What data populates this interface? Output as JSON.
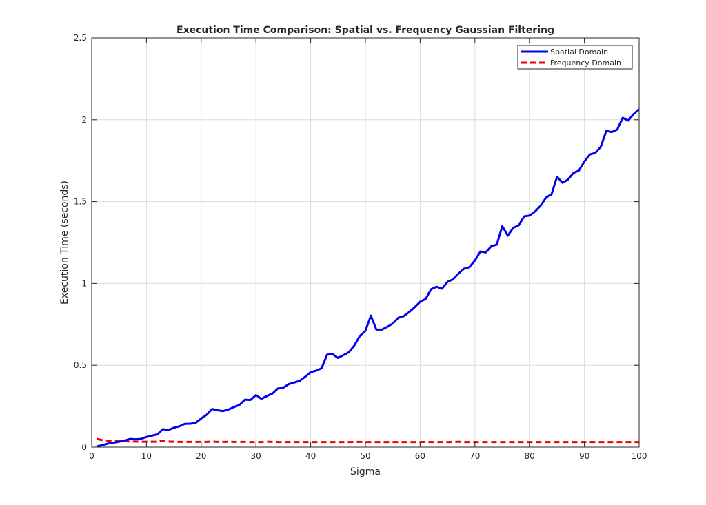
{
  "chart_data": {
    "type": "line",
    "title": "Execution Time Comparison: Spatial vs. Frequency Gaussian Filtering",
    "xlabel": "Sigma",
    "ylabel": "Execution Time (seconds)",
    "xlim": [
      0,
      100
    ],
    "ylim": [
      0,
      2.5
    ],
    "xticks": [
      0,
      10,
      20,
      30,
      40,
      50,
      60,
      70,
      80,
      90,
      100
    ],
    "yticks": [
      0,
      0.5,
      1,
      1.5,
      2,
      2.5
    ],
    "xtick_labels": [
      "0",
      "10",
      "20",
      "30",
      "40",
      "50",
      "60",
      "70",
      "80",
      "90",
      "100"
    ],
    "ytick_labels": [
      "0",
      "0.5",
      "1",
      "1.5",
      "2",
      "2.5"
    ],
    "grid": true,
    "legend_position": "top-right",
    "x": [
      1,
      2,
      3,
      4,
      5,
      6,
      7,
      8,
      9,
      10,
      11,
      12,
      13,
      14,
      15,
      16,
      17,
      18,
      19,
      20,
      21,
      22,
      23,
      24,
      25,
      26,
      27,
      28,
      29,
      30,
      31,
      32,
      33,
      34,
      35,
      36,
      37,
      38,
      39,
      40,
      41,
      42,
      43,
      44,
      45,
      46,
      47,
      48,
      49,
      50,
      51,
      52,
      53,
      54,
      55,
      56,
      57,
      58,
      59,
      60,
      61,
      62,
      63,
      64,
      65,
      66,
      67,
      68,
      69,
      70,
      71,
      72,
      73,
      74,
      75,
      76,
      77,
      78,
      79,
      80,
      81,
      82,
      83,
      84,
      85,
      86,
      87,
      88,
      89,
      90,
      91,
      92,
      93,
      94,
      95,
      96,
      97,
      98,
      99,
      100
    ],
    "series": [
      {
        "name": "Spatial Domain",
        "color": "#0000ee",
        "style": "solid",
        "values": [
          0.005,
          0.012,
          0.022,
          0.027,
          0.033,
          0.04,
          0.05,
          0.048,
          0.05,
          0.062,
          0.07,
          0.078,
          0.11,
          0.105,
          0.118,
          0.127,
          0.142,
          0.143,
          0.148,
          0.175,
          0.198,
          0.233,
          0.225,
          0.22,
          0.23,
          0.245,
          0.258,
          0.29,
          0.288,
          0.318,
          0.295,
          0.312,
          0.327,
          0.358,
          0.363,
          0.385,
          0.395,
          0.405,
          0.43,
          0.458,
          0.467,
          0.482,
          0.565,
          0.568,
          0.545,
          0.562,
          0.58,
          0.622,
          0.68,
          0.71,
          0.803,
          0.718,
          0.718,
          0.735,
          0.755,
          0.79,
          0.8,
          0.825,
          0.855,
          0.888,
          0.905,
          0.965,
          0.98,
          0.968,
          1.01,
          1.025,
          1.06,
          1.09,
          1.1,
          1.14,
          1.195,
          1.19,
          1.228,
          1.237,
          1.35,
          1.292,
          1.34,
          1.355,
          1.41,
          1.415,
          1.44,
          1.475,
          1.525,
          1.545,
          1.652,
          1.615,
          1.635,
          1.675,
          1.69,
          1.745,
          1.788,
          1.798,
          1.835,
          1.932,
          1.925,
          1.94,
          2.012,
          1.995,
          2.035,
          2.065
        ]
      },
      {
        "name": "Frequency Domain",
        "color": "#ee0000",
        "style": "dashed",
        "values": [
          0.05,
          0.042,
          0.04,
          0.038,
          0.036,
          0.036,
          0.034,
          0.034,
          0.033,
          0.033,
          0.033,
          0.033,
          0.038,
          0.034,
          0.033,
          0.032,
          0.032,
          0.032,
          0.032,
          0.032,
          0.032,
          0.034,
          0.032,
          0.032,
          0.033,
          0.032,
          0.032,
          0.032,
          0.031,
          0.031,
          0.031,
          0.033,
          0.032,
          0.031,
          0.031,
          0.031,
          0.031,
          0.031,
          0.031,
          0.031,
          0.031,
          0.031,
          0.031,
          0.031,
          0.031,
          0.031,
          0.031,
          0.032,
          0.032,
          0.031,
          0.031,
          0.031,
          0.031,
          0.031,
          0.031,
          0.031,
          0.031,
          0.031,
          0.031,
          0.031,
          0.032,
          0.031,
          0.031,
          0.031,
          0.031,
          0.031,
          0.033,
          0.031,
          0.031,
          0.031,
          0.031,
          0.031,
          0.031,
          0.031,
          0.031,
          0.031,
          0.031,
          0.031,
          0.031,
          0.031,
          0.031,
          0.031,
          0.031,
          0.031,
          0.031,
          0.031,
          0.031,
          0.031,
          0.031,
          0.031,
          0.031,
          0.031,
          0.031,
          0.031,
          0.031,
          0.031,
          0.031,
          0.031,
          0.031,
          0.031
        ]
      }
    ]
  }
}
